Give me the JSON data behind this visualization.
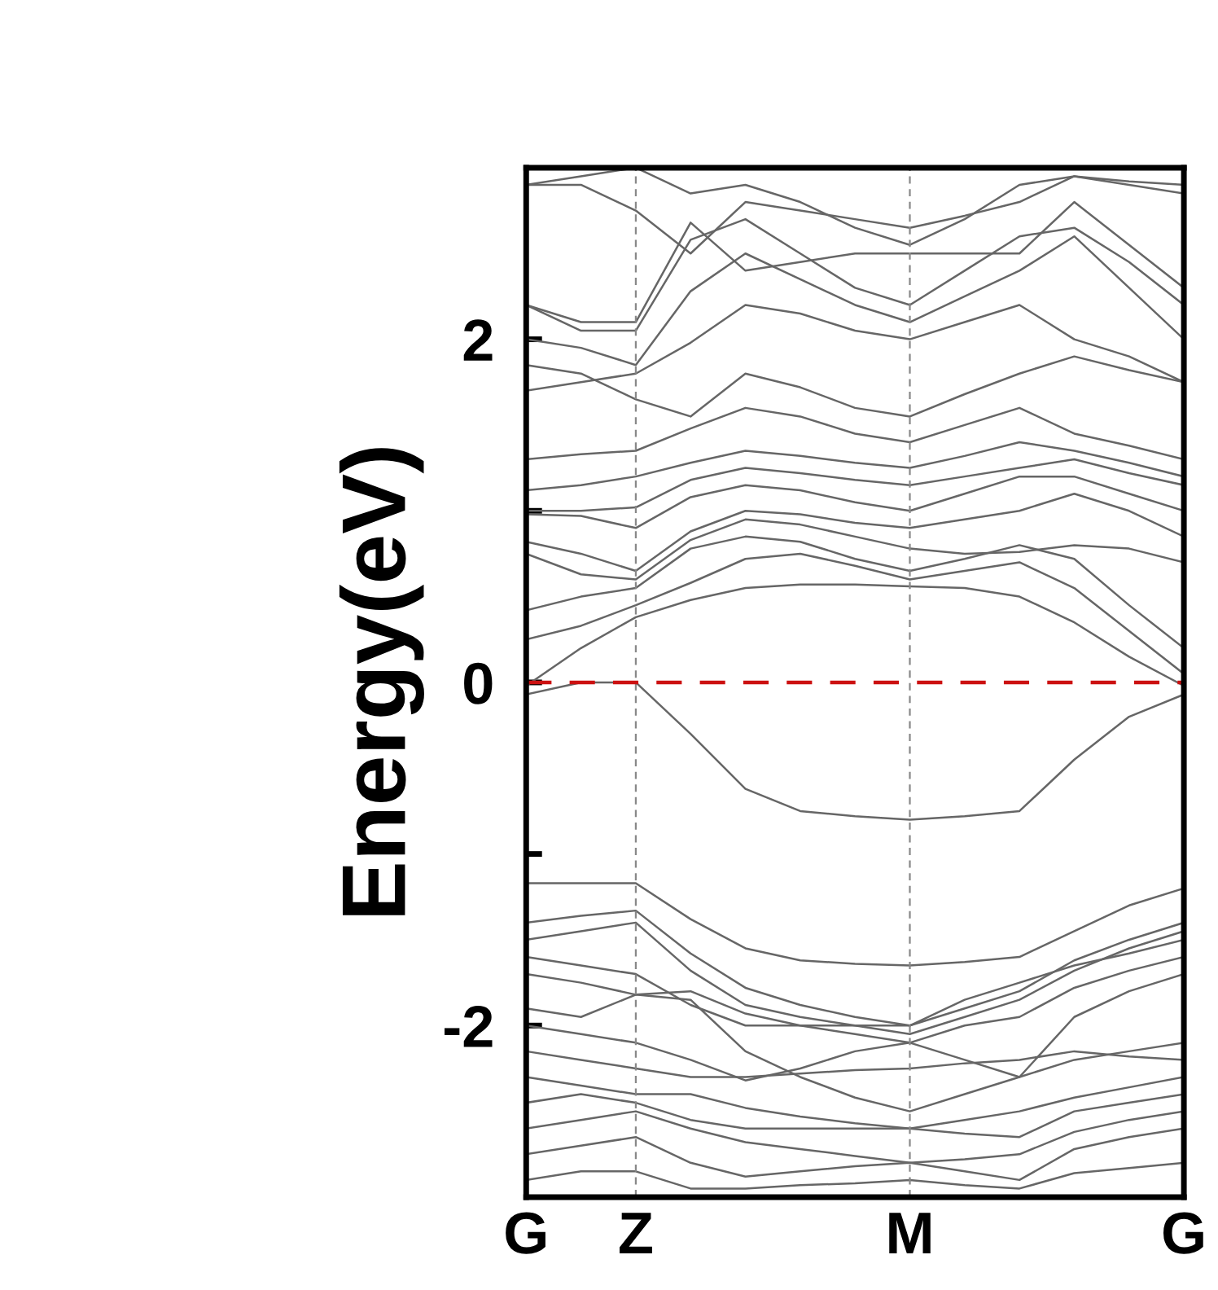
{
  "chart_data": {
    "type": "line",
    "ylabel": "Energy(eV)",
    "categories": [
      "G",
      null,
      "Z",
      null,
      null,
      null,
      null,
      "M",
      null,
      null,
      null,
      null,
      "G"
    ],
    "ylim": [
      -3,
      3
    ],
    "yticks": [
      {
        "value": -2,
        "label": "-2"
      },
      {
        "value": -1,
        "label": null
      },
      0,
      {
        "value": 1,
        "label": null
      },
      2
    ],
    "grid": false,
    "legend": false,
    "marker": "none",
    "line_style": "solid",
    "ref_lines": [
      {
        "axis": "x",
        "value": "Z",
        "color": "#888888",
        "line_style": "dashed"
      },
      {
        "axis": "x",
        "value": "M",
        "color": "#888888",
        "line_style": "dashed"
      },
      {
        "axis": "y",
        "value": 0,
        "color": "#cc1111",
        "line_style": "dashed"
      }
    ],
    "series": [
      {
        "color": "#666666",
        "values": [
          -0.02,
          0.2,
          0.38,
          0.48,
          0.55,
          0.57,
          0.57,
          0.56,
          0.55,
          0.5,
          0.35,
          0.15,
          -0.02
        ]
      },
      {
        "color": "#666666",
        "values": [
          0.25,
          0.33,
          0.45,
          0.58,
          0.72,
          0.75,
          0.68,
          0.6,
          0.65,
          0.7,
          0.55,
          0.3,
          0.05
        ]
      },
      {
        "color": "#666666",
        "values": [
          0.42,
          0.5,
          0.55,
          0.78,
          0.85,
          0.82,
          0.72,
          0.65,
          0.72,
          0.8,
          0.72,
          0.45,
          0.2
        ]
      },
      {
        "color": "#666666",
        "values": [
          0.75,
          0.63,
          0.6,
          0.83,
          0.95,
          0.92,
          0.85,
          0.78,
          0.75,
          0.76,
          0.8,
          0.78,
          0.7
        ]
      },
      {
        "color": "#666666",
        "values": [
          0.82,
          0.75,
          0.65,
          0.88,
          1.0,
          0.98,
          0.93,
          0.9,
          0.95,
          1.0,
          1.1,
          1.0,
          0.85
        ]
      },
      {
        "color": "#666666",
        "values": [
          0.98,
          0.97,
          0.9,
          1.08,
          1.15,
          1.12,
          1.05,
          1.0,
          1.1,
          1.2,
          1.2,
          1.1,
          1.0
        ]
      },
      {
        "color": "#666666",
        "values": [
          1.0,
          1.0,
          1.02,
          1.18,
          1.25,
          1.22,
          1.18,
          1.15,
          1.2,
          1.25,
          1.3,
          1.22,
          1.15
        ]
      },
      {
        "color": "#666666",
        "values": [
          1.12,
          1.15,
          1.2,
          1.28,
          1.35,
          1.32,
          1.28,
          1.25,
          1.32,
          1.4,
          1.35,
          1.28,
          1.2
        ]
      },
      {
        "color": "#666666",
        "values": [
          1.3,
          1.33,
          1.35,
          1.48,
          1.6,
          1.55,
          1.45,
          1.4,
          1.5,
          1.6,
          1.45,
          1.38,
          1.3
        ]
      },
      {
        "color": "#666666",
        "values": [
          1.7,
          1.75,
          1.8,
          1.98,
          2.2,
          2.15,
          2.05,
          2.0,
          2.1,
          2.2,
          2.0,
          1.9,
          1.75
        ]
      },
      {
        "color": "#666666",
        "values": [
          1.85,
          1.8,
          1.65,
          1.55,
          1.8,
          1.72,
          1.6,
          1.55,
          1.68,
          1.8,
          1.9,
          1.82,
          1.75
        ]
      },
      {
        "color": "#666666",
        "values": [
          2.0,
          1.95,
          1.85,
          2.28,
          2.5,
          2.35,
          2.2,
          2.1,
          2.25,
          2.4,
          2.6,
          2.3,
          2.0
        ]
      },
      {
        "color": "#666666",
        "values": [
          2.2,
          2.1,
          2.1,
          2.68,
          2.4,
          2.45,
          2.5,
          2.5,
          2.5,
          2.5,
          2.8,
          2.55,
          2.3
        ]
      },
      {
        "color": "#666666",
        "values": [
          2.2,
          2.05,
          2.05,
          2.58,
          2.7,
          2.5,
          2.3,
          2.2,
          2.4,
          2.6,
          2.65,
          2.45,
          2.2
        ]
      },
      {
        "color": "#666666",
        "values": [
          2.9,
          2.9,
          2.75,
          2.5,
          2.8,
          2.75,
          2.7,
          2.65,
          2.72,
          2.8,
          2.95,
          2.9,
          2.85
        ]
      },
      {
        "color": "#666666",
        "values": [
          2.9,
          2.95,
          3.0,
          2.85,
          2.9,
          2.8,
          2.65,
          2.55,
          2.7,
          2.9,
          2.95,
          2.92,
          2.9
        ]
      },
      {
        "color": "#666666",
        "values": [
          -0.07,
          0.0,
          0.0,
          -0.3,
          -0.62,
          -0.75,
          -0.78,
          -0.8,
          -0.78,
          -0.75,
          -0.45,
          -0.2,
          -0.07
        ]
      },
      {
        "color": "#666666",
        "values": [
          -1.17,
          -1.17,
          -1.17,
          -1.38,
          -1.55,
          -1.62,
          -1.64,
          -1.65,
          -1.63,
          -1.6,
          -1.45,
          -1.3,
          -1.2
        ]
      },
      {
        "color": "#666666",
        "values": [
          -1.4,
          -1.36,
          -1.33,
          -1.58,
          -1.78,
          -1.88,
          -1.95,
          -2.0,
          -1.9,
          -1.8,
          -1.62,
          -1.5,
          -1.4
        ]
      },
      {
        "color": "#666666",
        "values": [
          -1.5,
          -1.45,
          -1.4,
          -1.68,
          -1.88,
          -1.95,
          -2.0,
          -2.05,
          -1.95,
          -1.85,
          -1.68,
          -1.55,
          -1.45
        ]
      },
      {
        "color": "#666666",
        "values": [
          -1.6,
          -1.65,
          -1.7,
          -1.88,
          -2.0,
          -2.0,
          -2.0,
          -2.0,
          -1.85,
          -1.75,
          -1.65,
          -1.58,
          -1.5
        ]
      },
      {
        "color": "#666666",
        "values": [
          -1.7,
          -1.75,
          -1.82,
          -1.8,
          -1.93,
          -2.0,
          -2.05,
          -2.1,
          -2.0,
          -1.95,
          -1.78,
          -1.68,
          -1.6
        ]
      },
      {
        "color": "#666666",
        "values": [
          -1.9,
          -1.95,
          -1.82,
          -1.85,
          -2.15,
          -2.3,
          -2.42,
          -2.5,
          -2.4,
          -2.3,
          -1.95,
          -1.8,
          -1.7
        ]
      },
      {
        "color": "#666666",
        "values": [
          -2.0,
          -2.05,
          -2.1,
          -2.2,
          -2.32,
          -2.25,
          -2.15,
          -2.1,
          -2.2,
          -2.3,
          -2.2,
          -2.15,
          -2.1
        ]
      },
      {
        "color": "#666666",
        "values": [
          -2.15,
          -2.2,
          -2.25,
          -2.3,
          -2.3,
          -2.28,
          -2.26,
          -2.25,
          -2.22,
          -2.2,
          -2.15,
          -2.18,
          -2.2
        ]
      },
      {
        "color": "#666666",
        "values": [
          -2.3,
          -2.35,
          -2.4,
          -2.4,
          -2.48,
          -2.53,
          -2.57,
          -2.6,
          -2.55,
          -2.5,
          -2.42,
          -2.36,
          -2.3
        ]
      },
      {
        "color": "#666666",
        "values": [
          -2.45,
          -2.4,
          -2.45,
          -2.55,
          -2.6,
          -2.6,
          -2.6,
          -2.6,
          -2.63,
          -2.65,
          -2.5,
          -2.45,
          -2.4
        ]
      },
      {
        "color": "#666666",
        "values": [
          -2.6,
          -2.55,
          -2.5,
          -2.6,
          -2.68,
          -2.72,
          -2.76,
          -2.8,
          -2.78,
          -2.75,
          -2.62,
          -2.55,
          -2.5
        ]
      },
      {
        "color": "#666666",
        "values": [
          -2.75,
          -2.7,
          -2.65,
          -2.8,
          -2.88,
          -2.85,
          -2.82,
          -2.8,
          -2.85,
          -2.9,
          -2.72,
          -2.65,
          -2.6
        ]
      },
      {
        "color": "#666666",
        "values": [
          -2.9,
          -2.85,
          -2.85,
          -2.95,
          -2.95,
          -2.93,
          -2.92,
          -2.9,
          -2.93,
          -2.95,
          -2.86,
          -2.83,
          -2.8
        ]
      }
    ]
  }
}
